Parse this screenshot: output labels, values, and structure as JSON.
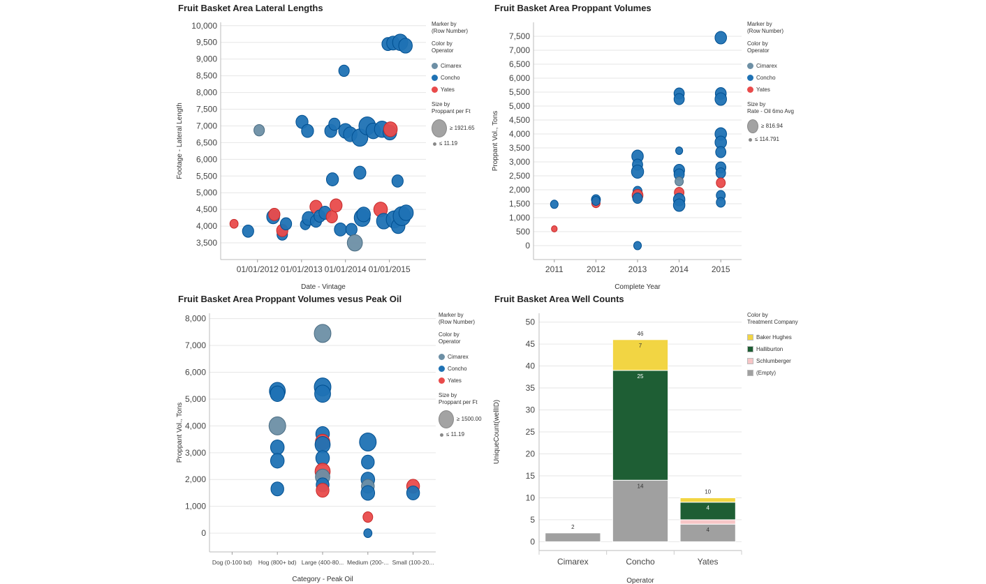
{
  "colors": {
    "Cimarex": "#6d8fa5",
    "Concho": "#1f72b4",
    "Yates": "#e94b4b",
    "Baker Hughes": "#f2d543",
    "Halliburton": "#1e5e34",
    "Schlumberger": "#f7c6c7",
    "(Empty)": "#a0a0a0"
  },
  "operator_legend": {
    "marker_title": "Marker by",
    "marker_field": "(Row Number)",
    "color_title": "Color by",
    "color_field": "Operator",
    "items": [
      "Cimarex",
      "Concho",
      "Yates"
    ]
  },
  "chart_data": [
    {
      "type": "scatter",
      "title": "Fruit Basket Area Lateral Lengths",
      "xlabel": "Date - Vintage",
      "ylabel": "Footage - Lateral Length",
      "x_ticks": [
        "01/01/2012",
        "01/01/2013",
        "01/01/2014",
        "01/01/2015"
      ],
      "xlim": [
        "2011-03-01",
        "2015-11-01"
      ],
      "y_ticks": [
        "3,500",
        "4,000",
        "4,500",
        "5,000",
        "5,500",
        "6,000",
        "6,500",
        "7,000",
        "7,500",
        "8,000",
        "8,500",
        "9,000",
        "9,500",
        "10,000"
      ],
      "ylim": [
        3000,
        10100
      ],
      "size_legend": {
        "title": "Size by",
        "field": "Proppant per Ft",
        "max_label": "≥ 1921.65",
        "min_label": "≤ 11.19"
      },
      "points": [
        {
          "x": "2011-06-20",
          "y": 4070,
          "op": "Yates",
          "s": 0.2
        },
        {
          "x": "2011-10-15",
          "y": 3850,
          "op": "Concho",
          "s": 0.4
        },
        {
          "x": "2012-01-15",
          "y": 6870,
          "op": "Cimarex",
          "s": 0.35
        },
        {
          "x": "2012-05-10",
          "y": 4280,
          "op": "Concho",
          "s": 0.5
        },
        {
          "x": "2012-05-20",
          "y": 4350,
          "op": "Yates",
          "s": 0.4
        },
        {
          "x": "2012-07-25",
          "y": 3750,
          "op": "Concho",
          "s": 0.35
        },
        {
          "x": "2012-07-25",
          "y": 3870,
          "op": "Yates",
          "s": 0.4
        },
        {
          "x": "2012-08-25",
          "y": 4070,
          "op": "Concho",
          "s": 0.4
        },
        {
          "x": "2013-01-05",
          "y": 7120,
          "op": "Concho",
          "s": 0.45
        },
        {
          "x": "2013-02-20",
          "y": 6850,
          "op": "Concho",
          "s": 0.45
        },
        {
          "x": "2013-02-01",
          "y": 4050,
          "op": "Concho",
          "s": 0.3
        },
        {
          "x": "2013-03-01",
          "y": 4230,
          "op": "Concho",
          "s": 0.5
        },
        {
          "x": "2013-05-01",
          "y": 4150,
          "op": "Concho",
          "s": 0.4
        },
        {
          "x": "2013-05-01",
          "y": 4580,
          "op": "Yates",
          "s": 0.45
        },
        {
          "x": "2013-06-01",
          "y": 4300,
          "op": "Concho",
          "s": 0.4
        },
        {
          "x": "2013-07-15",
          "y": 4400,
          "op": "Concho",
          "s": 0.45
        },
        {
          "x": "2013-09-10",
          "y": 4280,
          "op": "Yates",
          "s": 0.4
        },
        {
          "x": "2013-10-15",
          "y": 4620,
          "op": "Yates",
          "s": 0.45
        },
        {
          "x": "2013-09-01",
          "y": 6850,
          "op": "Concho",
          "s": 0.45
        },
        {
          "x": "2013-10-01",
          "y": 7050,
          "op": "Concho",
          "s": 0.4
        },
        {
          "x": "2013-09-15",
          "y": 5400,
          "op": "Concho",
          "s": 0.45
        },
        {
          "x": "2013-11-20",
          "y": 3900,
          "op": "Concho",
          "s": 0.45
        },
        {
          "x": "2013-12-20",
          "y": 8650,
          "op": "Concho",
          "s": 0.35
        },
        {
          "x": "2014-01-01",
          "y": 6850,
          "op": "Concho",
          "s": 0.55
        },
        {
          "x": "2014-02-10",
          "y": 6750,
          "op": "Concho",
          "s": 0.55
        },
        {
          "x": "2014-02-20",
          "y": 3900,
          "op": "Concho",
          "s": 0.4
        },
        {
          "x": "2014-03-20",
          "y": 3500,
          "op": "Cimarex",
          "s": 0.65
        },
        {
          "x": "2014-05-01",
          "y": 6650,
          "op": "Concho",
          "s": 0.7
        },
        {
          "x": "2014-05-01",
          "y": 5600,
          "op": "Concho",
          "s": 0.45
        },
        {
          "x": "2014-05-20",
          "y": 4250,
          "op": "Concho",
          "s": 0.7
        },
        {
          "x": "2014-06-01",
          "y": 4350,
          "op": "Concho",
          "s": 0.55
        },
        {
          "x": "2014-07-01",
          "y": 7000,
          "op": "Concho",
          "s": 0.75
        },
        {
          "x": "2014-08-20",
          "y": 6850,
          "op": "Concho",
          "s": 0.6
        },
        {
          "x": "2014-10-20",
          "y": 4500,
          "op": "Yates",
          "s": 0.55
        },
        {
          "x": "2014-11-01",
          "y": 6900,
          "op": "Concho",
          "s": 0.65
        },
        {
          "x": "2014-11-15",
          "y": 4150,
          "op": "Concho",
          "s": 0.6
        },
        {
          "x": "2014-12-20",
          "y": 9450,
          "op": "Concho",
          "s": 0.45
        },
        {
          "x": "2015-01-05",
          "y": 6800,
          "op": "Concho",
          "s": 0.55
        },
        {
          "x": "2015-01-10",
          "y": 6900,
          "op": "Yates",
          "s": 0.55
        },
        {
          "x": "2015-02-01",
          "y": 9480,
          "op": "Concho",
          "s": 0.5
        },
        {
          "x": "2015-02-10",
          "y": 4200,
          "op": "Concho",
          "s": 0.7
        },
        {
          "x": "2015-03-10",
          "y": 5350,
          "op": "Concho",
          "s": 0.4
        },
        {
          "x": "2015-03-15",
          "y": 4000,
          "op": "Concho",
          "s": 0.55
        },
        {
          "x": "2015-04-01",
          "y": 9500,
          "op": "Concho",
          "s": 0.65
        },
        {
          "x": "2015-04-15",
          "y": 4300,
          "op": "Concho",
          "s": 0.8
        },
        {
          "x": "2015-05-15",
          "y": 9400,
          "op": "Concho",
          "s": 0.55
        },
        {
          "x": "2015-05-20",
          "y": 4400,
          "op": "Concho",
          "s": 0.6
        }
      ]
    },
    {
      "type": "scatter",
      "title": "Fruit Basket Area Proppant Volumes",
      "xlabel": "Complete Year",
      "ylabel": "Proppant Vol., Tons",
      "categories": [
        "2011",
        "2012",
        "2013",
        "2014",
        "2015"
      ],
      "y_ticks": [
        "0",
        "500",
        "1,000",
        "1,500",
        "2,000",
        "2,500",
        "3,000",
        "3,500",
        "4,000",
        "4,500",
        "5,000",
        "5,500",
        "6,000",
        "6,500",
        "7,000",
        "7,500"
      ],
      "ylim": [
        -500,
        8000
      ],
      "size_legend": {
        "title": "Size by",
        "field": "Rate - Oil 6mo Avg",
        "max_label": "≥ 816.94",
        "min_label": "≤ 114.791"
      },
      "points": [
        {
          "x": "2011",
          "y": 1480,
          "op": "Concho",
          "s": 0.3
        },
        {
          "x": "2011",
          "y": 600,
          "op": "Yates",
          "s": 0.15
        },
        {
          "x": "2012",
          "y": 1650,
          "op": "Concho",
          "s": 0.4
        },
        {
          "x": "2012",
          "y": 1520,
          "op": "Yates",
          "s": 0.35
        },
        {
          "x": "2012",
          "y": 1600,
          "op": "Concho",
          "s": 0.35
        },
        {
          "x": "2013",
          "y": 3200,
          "op": "Concho",
          "s": 0.6
        },
        {
          "x": "2013",
          "y": 2900,
          "op": "Concho",
          "s": 0.5
        },
        {
          "x": "2013",
          "y": 2650,
          "op": "Concho",
          "s": 0.65
        },
        {
          "x": "2013",
          "y": 1950,
          "op": "Concho",
          "s": 0.4
        },
        {
          "x": "2013",
          "y": 1800,
          "op": "Yates",
          "s": 0.55
        },
        {
          "x": "2013",
          "y": 1700,
          "op": "Concho",
          "s": 0.45
        },
        {
          "x": "2013",
          "y": 0,
          "op": "Concho",
          "s": 0.3
        },
        {
          "x": "2014",
          "y": 5450,
          "op": "Concho",
          "s": 0.5
        },
        {
          "x": "2014",
          "y": 5250,
          "op": "Concho",
          "s": 0.5
        },
        {
          "x": "2014",
          "y": 3400,
          "op": "Concho",
          "s": 0.25
        },
        {
          "x": "2014",
          "y": 2700,
          "op": "Concho",
          "s": 0.55
        },
        {
          "x": "2014",
          "y": 2550,
          "op": "Concho",
          "s": 0.5
        },
        {
          "x": "2014",
          "y": 2300,
          "op": "Cimarex",
          "s": 0.35
        },
        {
          "x": "2014",
          "y": 1900,
          "op": "Yates",
          "s": 0.45
        },
        {
          "x": "2014",
          "y": 1650,
          "op": "Concho",
          "s": 0.6
        },
        {
          "x": "2014",
          "y": 1450,
          "op": "Concho",
          "s": 0.6
        },
        {
          "x": "2015",
          "y": 7450,
          "op": "Concho",
          "s": 0.6
        },
        {
          "x": "2015",
          "y": 5450,
          "op": "Concho",
          "s": 0.55
        },
        {
          "x": "2015",
          "y": 5250,
          "op": "Concho",
          "s": 0.6
        },
        {
          "x": "2015",
          "y": 4000,
          "op": "Concho",
          "s": 0.6
        },
        {
          "x": "2015",
          "y": 3700,
          "op": "Concho",
          "s": 0.6
        },
        {
          "x": "2015",
          "y": 3350,
          "op": "Concho",
          "s": 0.5
        },
        {
          "x": "2015",
          "y": 2800,
          "op": "Concho",
          "s": 0.5
        },
        {
          "x": "2015",
          "y": 2600,
          "op": "Concho",
          "s": 0.45
        },
        {
          "x": "2015",
          "y": 2250,
          "op": "Yates",
          "s": 0.4
        },
        {
          "x": "2015",
          "y": 1800,
          "op": "Concho",
          "s": 0.4
        },
        {
          "x": "2015",
          "y": 1550,
          "op": "Concho",
          "s": 0.4
        }
      ]
    },
    {
      "type": "scatter",
      "title": "Fruit Basket Area Proppant Volumes vesus Peak Oil",
      "xlabel": "Category - Peak Oil",
      "ylabel": "Proppant Vol., Tons",
      "categories": [
        "Dog (0-100 bd)",
        "Hog (800+ bd)",
        "Large (400-80...",
        "Medium (200-...",
        "Small (100-20..."
      ],
      "y_ticks": [
        "0",
        "1,000",
        "2,000",
        "3,000",
        "4,000",
        "5,000",
        "6,000",
        "7,000",
        "8,000"
      ],
      "ylim": [
        -700,
        8200
      ],
      "size_legend": {
        "title": "Size by",
        "field": "Proppant per Ft",
        "max_label": "≥ 1500.00",
        "min_label": "≤ 11.19"
      },
      "points": [
        {
          "x": "Hog (800+ bd)",
          "y": 5300,
          "op": "Concho",
          "s": 0.7
        },
        {
          "x": "Hog (800+ bd)",
          "y": 5200,
          "op": "Concho",
          "s": 0.6
        },
        {
          "x": "Hog (800+ bd)",
          "y": 4000,
          "op": "Cimarex",
          "s": 0.75
        },
        {
          "x": "Hog (800+ bd)",
          "y": 3200,
          "op": "Concho",
          "s": 0.55
        },
        {
          "x": "Hog (800+ bd)",
          "y": 2700,
          "op": "Concho",
          "s": 0.55
        },
        {
          "x": "Hog (800+ bd)",
          "y": 1650,
          "op": "Concho",
          "s": 0.5
        },
        {
          "x": "Large (400-80...",
          "y": 7450,
          "op": "Cimarex",
          "s": 0.75
        },
        {
          "x": "Large (400-80...",
          "y": 5450,
          "op": "Concho",
          "s": 0.75
        },
        {
          "x": "Large (400-80...",
          "y": 5200,
          "op": "Concho",
          "s": 0.7
        },
        {
          "x": "Large (400-80...",
          "y": 3700,
          "op": "Concho",
          "s": 0.55
        },
        {
          "x": "Large (400-80...",
          "y": 3400,
          "op": "Yates",
          "s": 0.6
        },
        {
          "x": "Large (400-80...",
          "y": 3300,
          "op": "Concho",
          "s": 0.65
        },
        {
          "x": "Large (400-80...",
          "y": 2800,
          "op": "Concho",
          "s": 0.55
        },
        {
          "x": "Large (400-80...",
          "y": 2300,
          "op": "Yates",
          "s": 0.65
        },
        {
          "x": "Large (400-80...",
          "y": 2100,
          "op": "Cimarex",
          "s": 0.6
        },
        {
          "x": "Large (400-80...",
          "y": 1800,
          "op": "Concho",
          "s": 0.5
        },
        {
          "x": "Large (400-80...",
          "y": 1600,
          "op": "Yates",
          "s": 0.5
        },
        {
          "x": "Medium (200-...",
          "y": 3400,
          "op": "Concho",
          "s": 0.75
        },
        {
          "x": "Medium (200-...",
          "y": 2650,
          "op": "Concho",
          "s": 0.5
        },
        {
          "x": "Medium (200-...",
          "y": 2000,
          "op": "Concho",
          "s": 0.55
        },
        {
          "x": "Medium (200-...",
          "y": 1750,
          "op": "Cimarex",
          "s": 0.5
        },
        {
          "x": "Medium (200-...",
          "y": 1500,
          "op": "Concho",
          "s": 0.55
        },
        {
          "x": "Medium (200-...",
          "y": 600,
          "op": "Yates",
          "s": 0.3
        },
        {
          "x": "Medium (200-...",
          "y": 0,
          "op": "Concho",
          "s": 0.2
        },
        {
          "x": "Small (100-20...",
          "y": 1750,
          "op": "Yates",
          "s": 0.5
        },
        {
          "x": "Small (100-20...",
          "y": 1500,
          "op": "Concho",
          "s": 0.5
        }
      ]
    },
    {
      "type": "bar",
      "stacked": true,
      "title": "Fruit Basket Area Well Counts",
      "xlabel": "Operator",
      "ylabel": "UniqueCount(wellID)",
      "categories": [
        "Cimarex",
        "Concho",
        "Yates"
      ],
      "y_ticks": [
        "0",
        "5",
        "10",
        "15",
        "20",
        "25",
        "30",
        "35",
        "40",
        "45",
        "50"
      ],
      "ylim": [
        -2,
        52
      ],
      "legend": {
        "title": "Color by",
        "field": "Treatment Company",
        "items": [
          "Baker Hughes",
          "Halliburton",
          "Schlumberger",
          "(Empty)"
        ]
      },
      "totals": [
        "2",
        "46",
        "10"
      ],
      "series": [
        {
          "name": "(Empty)",
          "values": [
            2,
            14,
            4
          ],
          "labels": [
            "",
            "14",
            "4"
          ]
        },
        {
          "name": "Schlumberger",
          "values": [
            0,
            0,
            1
          ],
          "labels": [
            "",
            "",
            ""
          ]
        },
        {
          "name": "Halliburton",
          "values": [
            0,
            25,
            4
          ],
          "labels": [
            "",
            "25",
            "4"
          ]
        },
        {
          "name": "Baker Hughes",
          "values": [
            0,
            7,
            1
          ],
          "labels": [
            "",
            "7",
            ""
          ]
        }
      ]
    }
  ]
}
